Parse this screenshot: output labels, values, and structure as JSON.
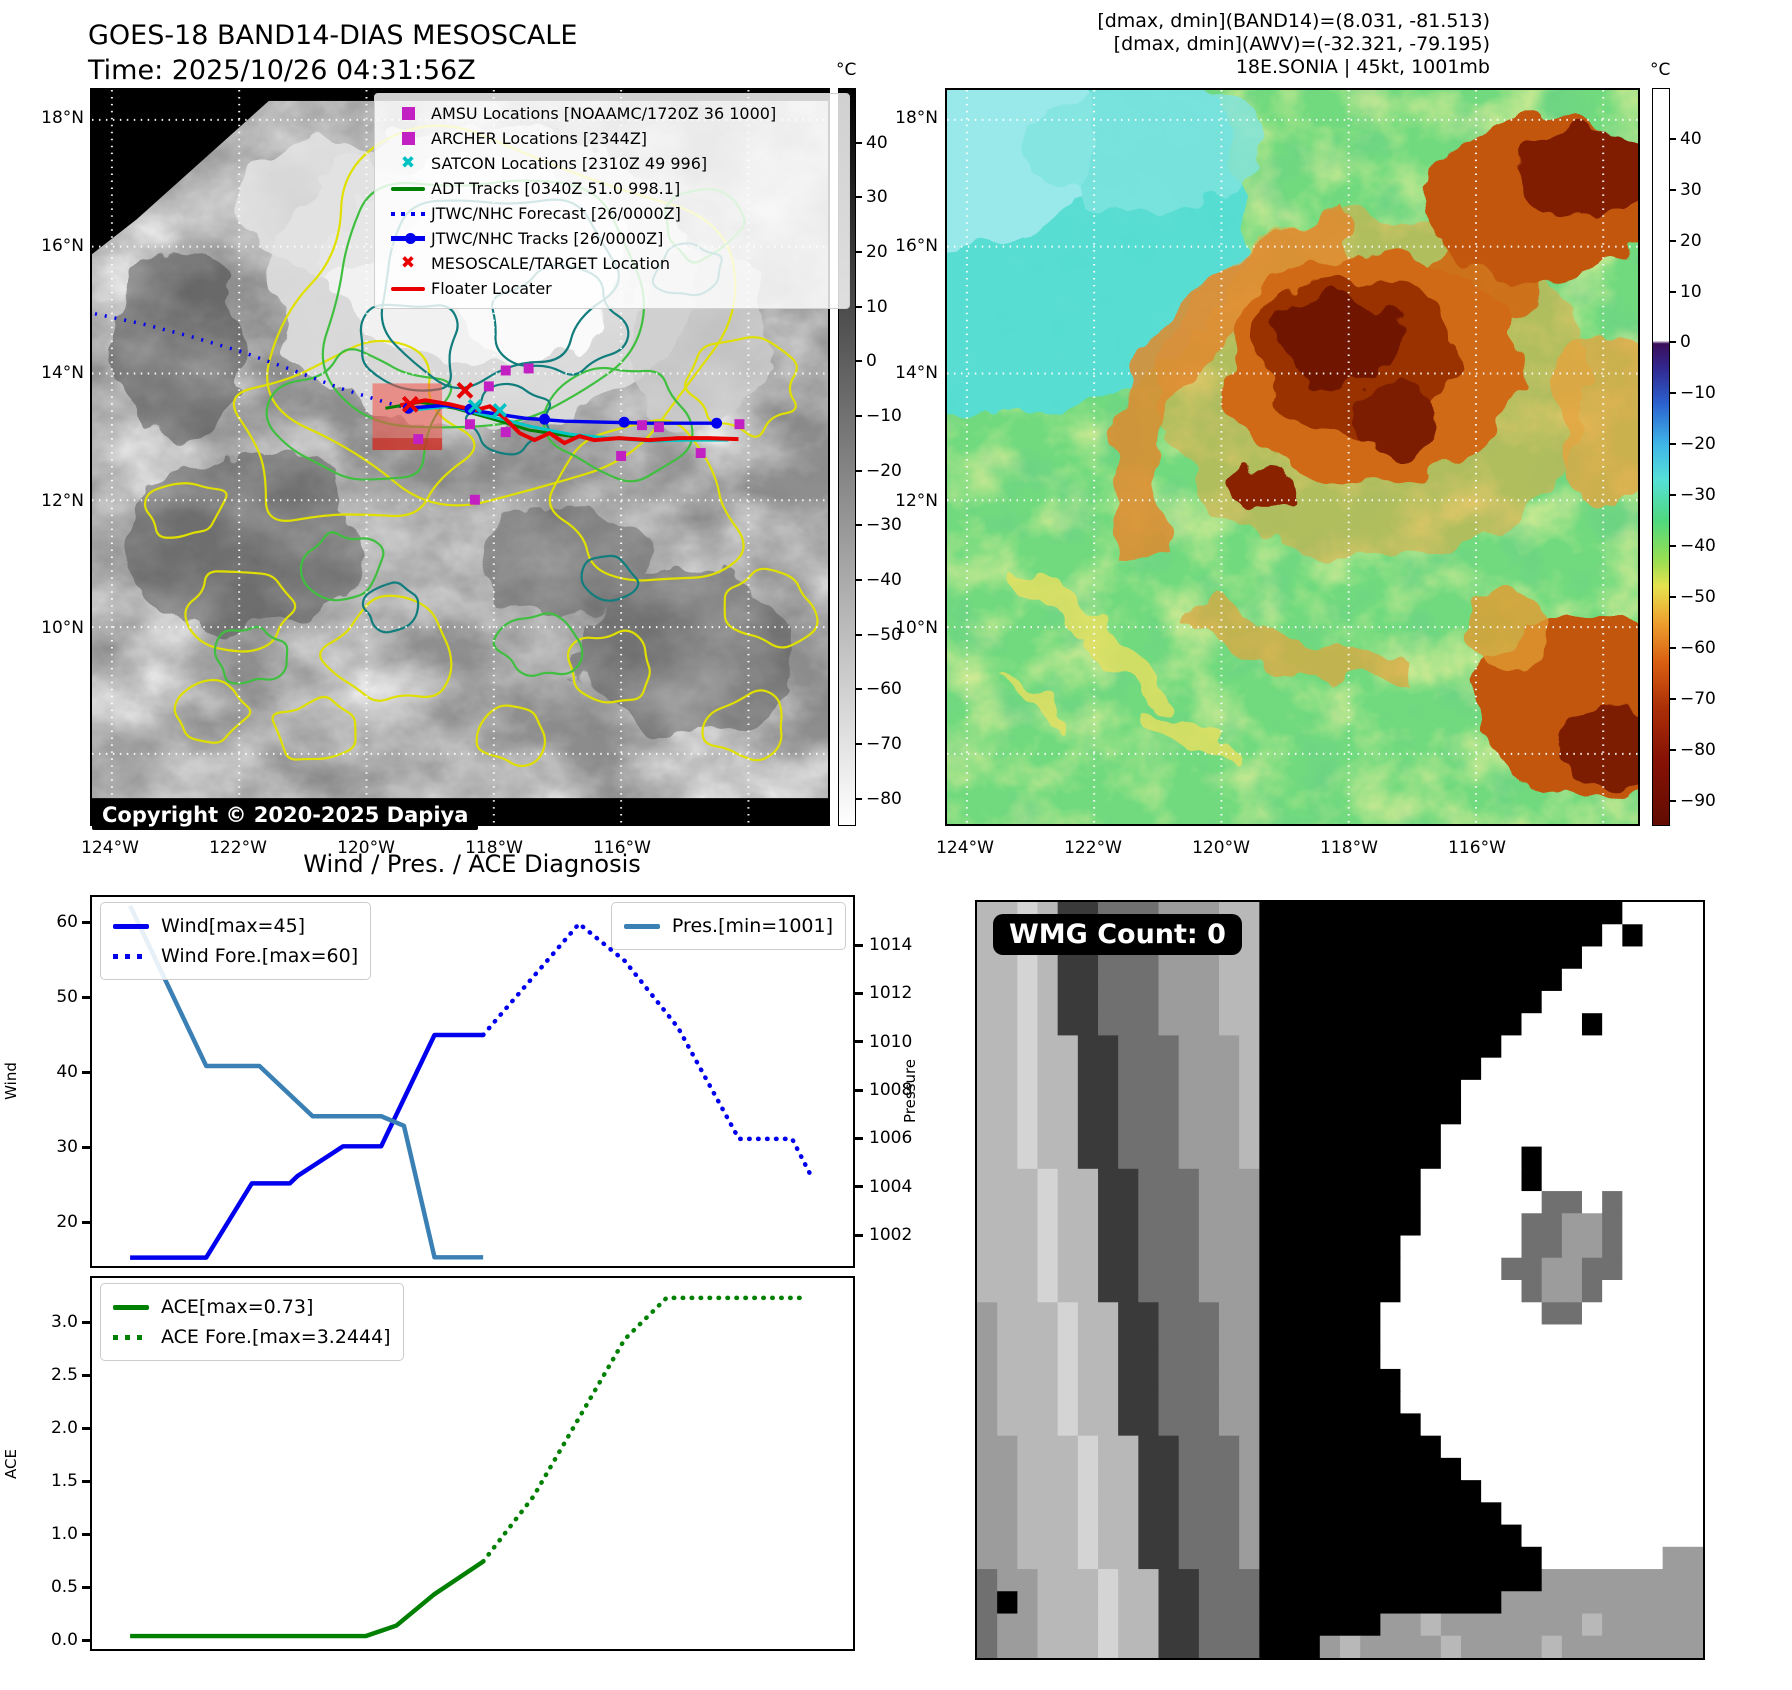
{
  "goes_panel": {
    "title": "GOES-18 BAND14-DIAS MESOSCALE",
    "time_line": "Time: 2025/10/26 04:31:56Z",
    "copyright": "Copyright © 2020-2025 Dapiya",
    "legend": [
      {
        "marker": "square",
        "color": "#c320c3",
        "label": "AMSU Locations [NOAAMC/1720Z 36 1000]"
      },
      {
        "marker": "square",
        "color": "#c320c3",
        "label": "ARCHER Locations [2344Z]"
      },
      {
        "marker": "x",
        "color": "#00c2c2",
        "label": "SATCON Locations [2310Z 49 996]"
      },
      {
        "marker": "line",
        "color": "#008000",
        "label": "ADT Tracks [0340Z 51.0 998.1]"
      },
      {
        "marker": "dotted",
        "color": "#0000ee",
        "label": "JTWC/NHC Forecast [26/0000Z]"
      },
      {
        "marker": "line-dot",
        "color": "#0000ee",
        "label": "JTWC/NHC Tracks [26/0000Z]"
      },
      {
        "marker": "x",
        "color": "#e80000",
        "label": "MESOSCALE/TARGET Location"
      },
      {
        "marker": "line",
        "color": "#e80000",
        "label": "Floater Locater"
      }
    ],
    "x_ticks": [
      "124°W",
      "122°W",
      "120°W",
      "118°W",
      "116°W"
    ],
    "y_ticks": [
      "18°N",
      "16°N",
      "14°N",
      "12°N",
      "10°N"
    ],
    "colorbar": {
      "unit": "°C",
      "ticks": [
        40,
        30,
        20,
        10,
        0,
        -10,
        -20,
        -30,
        -40,
        -50,
        -60,
        -70,
        -80
      ],
      "vmax": 50,
      "vmin": -85
    }
  },
  "awv_panel": {
    "header_lines": [
      "[dmax, dmin](BAND14)=(8.031, -81.513)",
      "[dmax, dmin](AWV)=(-32.321, -79.195)",
      "18E.SONIA | 45kt, 1001mb"
    ],
    "x_ticks": [
      "124°W",
      "122°W",
      "120°W",
      "118°W",
      "116°W"
    ],
    "y_ticks": [
      "18°N",
      "16°N",
      "14°N",
      "12°N",
      "10°N"
    ],
    "colorbar": {
      "unit": "°C",
      "ticks": [
        40,
        30,
        20,
        10,
        0,
        -10,
        -20,
        -30,
        -40,
        -50,
        -60,
        -70,
        -80,
        -90
      ],
      "vmax": 50,
      "vmin": -95
    }
  },
  "diagnosis": {
    "title": "Wind / Pres. / ACE Diagnosis"
  },
  "wmg_panel": {
    "count_label": "WMG Count: 0",
    "palette": {
      ".": "#ffffff",
      "0": "#000000",
      "1": "#3a3a3a",
      "2": "#707070",
      "3": "#9c9c9c",
      "4": "#b8b8b8",
      "5": "#d4d4d4"
    },
    "grid": [
      "44541122233344000000000000000000....",
      "4454112223334400000000000000000.0...",
      "445411222333440000000000000000......",
      "44541122233344000000000000000.......",
      "4454112223334400000000000000........",
      "445411222333440000000000000...0.....",
      "44544112223334000000000000..........",
      "4454411222333400000000000...........",
      "445441122233340000000000............",
      "445441122233340000000000............",
      "44544112223334000000000.............",
      "44544112223334000000000....0........",
      "4445441122233300000000.....0........",
      "4445441122233300000000......22.2....",
      "4445441122233300000000.....22332....",
      "444544112223330000000......22332....",
      "444544112223330000000.....223322....",
      "444544112223330000000......2332.....",
      "34445441122233000000........22......",
      "34445441122233000000................",
      "34445441122233000000................",
      "344454411222330000000...............",
      "344454411222330000000...............",
      "3444544112223300000000..............",
      "33444544112223000000000.............",
      "334445441122230000000000............",
      "3344454411222300000000000...........",
      "33444544112223000000000000..........",
      "334445441122230000000000000.........",
      "3344454411222300000000000000......33",
      "233444544112220000000000000033333333",
      "203444544112220000000000003333333333",
      "233444544112220000003343333333433333",
      "233444544112220003433334333343333333"
    ]
  },
  "chart_data": [
    {
      "type": "line",
      "subplot": "wind_pressure",
      "title": "Wind / Pres. / ACE Diagnosis (top subplot)",
      "x_axis": {
        "label": "",
        "range": [
          0,
          1
        ],
        "note": "forecast time axis, no tick labels shown"
      },
      "y_left": {
        "label": "Wind",
        "ticks": [
          60,
          50,
          40,
          30,
          20
        ],
        "range": [
          13.9,
          63.6
        ]
      },
      "y_right": {
        "label": "Pressure",
        "ticks": [
          1014,
          1012,
          1010,
          1008,
          1006,
          1004,
          1002
        ],
        "range": [
          1000.9,
          1015.9
        ]
      },
      "legend_position": {
        "wind": "upper left",
        "pres": "upper right"
      },
      "grid": false,
      "series": [
        {
          "name": "Wind[max=45]",
          "style": "solid",
          "color": "#0000ee",
          "axis": "left",
          "points": [
            [
              0.05,
              15
            ],
            [
              0.15,
              15
            ],
            [
              0.21,
              25
            ],
            [
              0.26,
              25
            ],
            [
              0.27,
              26
            ],
            [
              0.33,
              30
            ],
            [
              0.38,
              30
            ],
            [
              0.45,
              45
            ],
            [
              0.514,
              45
            ]
          ]
        },
        {
          "name": "Wind Fore.[max=60]",
          "style": "dotted",
          "color": "#0000ee",
          "axis": "left",
          "points": [
            [
              0.514,
              45
            ],
            [
              0.64,
              60
            ],
            [
              0.7,
              55
            ],
            [
              0.77,
              46
            ],
            [
              0.85,
              31
            ],
            [
              0.92,
              31
            ],
            [
              0.945,
              26
            ]
          ]
        },
        {
          "name": "Pres.[min=1001]",
          "style": "solid",
          "color": "#3b80b4",
          "axis": "right",
          "points": [
            [
              0.05,
              1015.7
            ],
            [
              0.15,
              1009.0
            ],
            [
              0.22,
              1009.0
            ],
            [
              0.29,
              1006.9
            ],
            [
              0.38,
              1006.9
            ],
            [
              0.41,
              1006.5
            ],
            [
              0.45,
              1001.0
            ],
            [
              0.514,
              1001.0
            ]
          ]
        }
      ]
    },
    {
      "type": "line",
      "subplot": "ace",
      "title": "ACE (bottom subplot)",
      "x_axis": {
        "label": "",
        "range": [
          0,
          1
        ],
        "note": "forecast time axis, no tick labels shown"
      },
      "y_left": {
        "label": "ACE",
        "ticks": [
          "3.0",
          "2.5",
          "2.0",
          "1.5",
          "1.0",
          "0.5",
          "0.0"
        ],
        "range": [
          -0.11,
          3.43
        ]
      },
      "legend_position": "upper left",
      "grid": false,
      "series": [
        {
          "name": "ACE[max=0.73]",
          "style": "solid",
          "color": "#008000",
          "axis": "left",
          "points": [
            [
              0.05,
              0.02
            ],
            [
              0.36,
              0.02
            ],
            [
              0.4,
              0.12
            ],
            [
              0.45,
              0.42
            ],
            [
              0.514,
              0.73
            ]
          ]
        },
        {
          "name": "ACE Fore.[max=3.2444]",
          "style": "dotted",
          "color": "#008000",
          "axis": "left",
          "points": [
            [
              0.514,
              0.73
            ],
            [
              0.58,
              1.35
            ],
            [
              0.64,
              2.1
            ],
            [
              0.7,
              2.85
            ],
            [
              0.755,
              3.2444
            ],
            [
              0.94,
              3.2444
            ]
          ]
        }
      ]
    }
  ]
}
